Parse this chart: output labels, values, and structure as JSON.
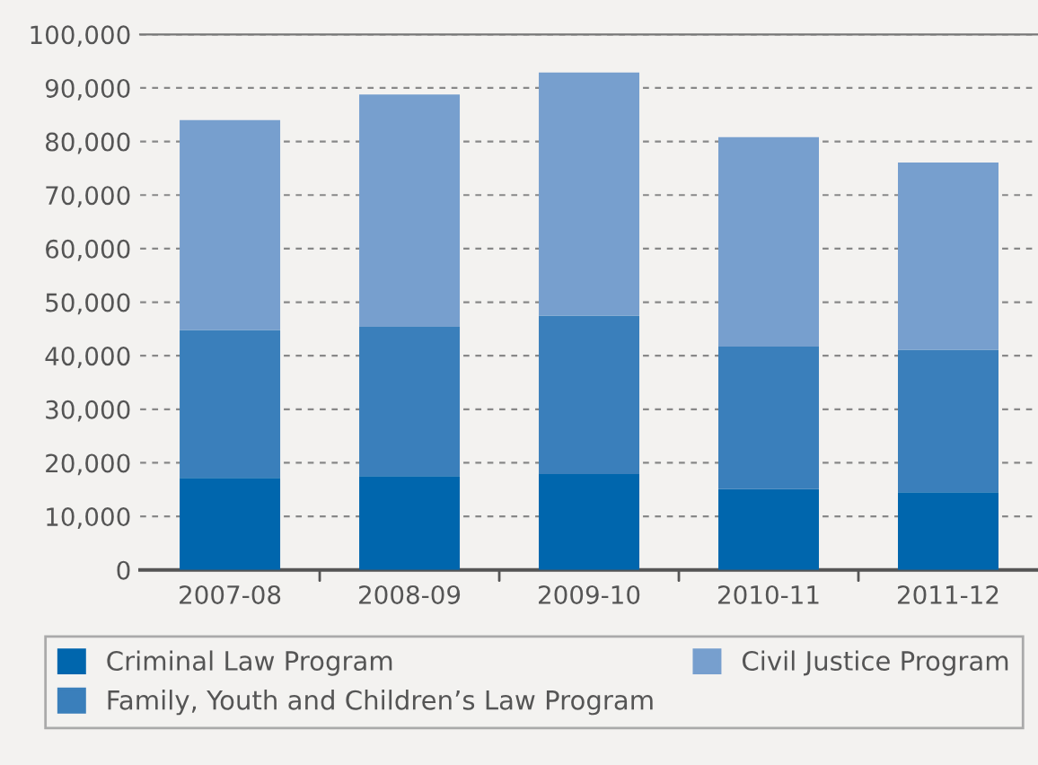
{
  "chart_data": {
    "type": "bar",
    "stacked": true,
    "categories": [
      "2007-08",
      "2008-09",
      "2009-10",
      "2010-11",
      "2011-12"
    ],
    "series": [
      {
        "name": "Criminal Law Program",
        "color": "#0066ad",
        "values": [
          17200,
          17500,
          17900,
          15100,
          14500
        ]
      },
      {
        "name": "Family, Youth and Children’s Law Program",
        "color": "#3a7fbb",
        "values": [
          27600,
          27900,
          29600,
          26600,
          26600
        ]
      },
      {
        "name": "Civil Justice Program",
        "color": "#779fce",
        "values": [
          39200,
          43400,
          45400,
          39100,
          35000
        ]
      }
    ],
    "ylim": [
      0,
      100000
    ],
    "yticks": [
      {
        "value": 0,
        "label": "0"
      },
      {
        "value": 10000,
        "label": "10,000"
      },
      {
        "value": 20000,
        "label": "20,000"
      },
      {
        "value": 30000,
        "label": "30,000"
      },
      {
        "value": 40000,
        "label": "40,000"
      },
      {
        "value": 50000,
        "label": "50,000"
      },
      {
        "value": 60000,
        "label": "60,000"
      },
      {
        "value": 70000,
        "label": "70,000"
      },
      {
        "value": 80000,
        "label": "80,000"
      },
      {
        "value": 90000,
        "label": "90,000"
      },
      {
        "value": 100000,
        "label": "100,000"
      }
    ],
    "grid": "y",
    "legend": "bottom"
  }
}
